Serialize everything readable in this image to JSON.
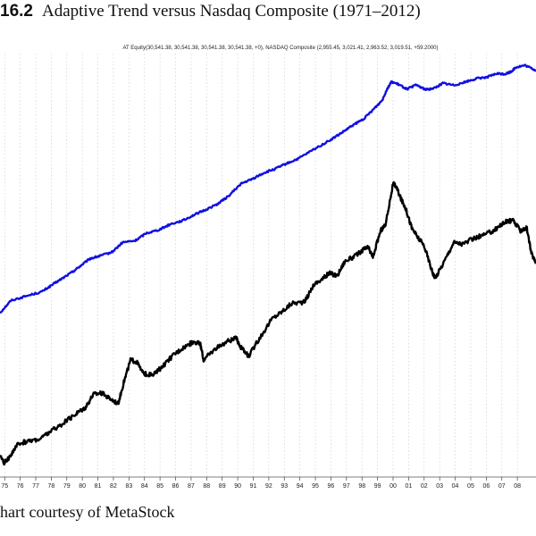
{
  "figure": {
    "number": "16.2",
    "title": "Adaptive Trend versus Nasdaq Composite (1971–2012)"
  },
  "caption": "hart courtesy of MetaStock",
  "chart_data": {
    "type": "line",
    "legend_text": "AT Equity(30,541.38, 30,541.38, 30,541.38, 30,541.38, +0), NASDAQ Composite (2,955.45, 3,021.41, 2,963.52, 3,019.51, +59.2000)",
    "legend_placement": "top-center",
    "grid": "vertical dotted",
    "x_tick_labels": [
      "75",
      "76",
      "77",
      "78",
      "79",
      "80",
      "81",
      "82",
      "83",
      "84",
      "85",
      "86",
      "87",
      "88",
      "89",
      "90",
      "91",
      "92",
      "93",
      "94",
      "95",
      "96",
      "97",
      "98",
      "99",
      "00",
      "01",
      "02",
      "03",
      "04",
      "05",
      "06",
      "07",
      "08"
    ],
    "xlim": [
      1974.8,
      2009.3
    ],
    "y_axis": "log",
    "series": [
      {
        "legend_ref": "AT Equity",
        "color": "#1010e0",
        "x": [
          1974.8,
          1975.5,
          1976.5,
          1977.5,
          1978.2,
          1978.8,
          1979.5,
          1980.0,
          1980.6,
          1981.2,
          1982.0,
          1982.7,
          1983.5,
          1984.2,
          1985.0,
          1985.8,
          1986.6,
          1987.3,
          1988.0,
          1988.8,
          1989.5,
          1990.3,
          1991.0,
          1991.8,
          1992.5,
          1993.2,
          1994.0,
          1995.0,
          1996.0,
          1996.8,
          1997.5,
          1998.2,
          1998.8,
          1999.4,
          1999.7,
          2000.0,
          2000.5,
          2001.0,
          2001.6,
          2002.2,
          2002.8,
          2003.3,
          2004.0,
          2004.8,
          2005.5,
          2006.2,
          2006.8,
          2007.3,
          2007.7,
          2008.0,
          2008.6,
          2009.3
        ],
        "y": [
          680,
          820,
          880,
          940,
          1050,
          1150,
          1280,
          1400,
          1560,
          1620,
          1720,
          2000,
          2050,
          2300,
          2420,
          2650,
          2800,
          3050,
          3280,
          3600,
          4050,
          4900,
          5250,
          5800,
          6150,
          6650,
          7200,
          8300,
          9500,
          10700,
          12000,
          13200,
          15200,
          17600,
          20800,
          23400,
          22300,
          20900,
          22300,
          20700,
          21300,
          22900,
          22200,
          23400,
          24600,
          25200,
          26500,
          26300,
          27300,
          29200,
          30000,
          27800
        ]
      },
      {
        "legend_ref": "NASDAQ Composite",
        "color": "#000000",
        "x": [
          1974.8,
          1975.1,
          1975.6,
          1976.0,
          1976.6,
          1977.4,
          1978.0,
          1978.6,
          1979.3,
          1979.8,
          1980.3,
          1980.8,
          1981.3,
          1981.8,
          1982.4,
          1982.8,
          1983.2,
          1983.6,
          1984.0,
          1984.6,
          1985.3,
          1986.0,
          1986.6,
          1987.3,
          1987.7,
          1987.9,
          1988.5,
          1989.4,
          1990.0,
          1990.3,
          1990.8,
          1991.5,
          1992.3,
          1993.0,
          1993.6,
          1994.4,
          1995.0,
          1995.6,
          1996.0,
          1996.5,
          1997.0,
          1997.6,
          1998.2,
          1998.5,
          1998.8,
          1999.3,
          1999.6,
          2000.1,
          2000.3,
          2000.6,
          2000.9,
          2001.3,
          2001.7,
          2002.1,
          2002.6,
          2002.8,
          2003.4,
          2004.0,
          2004.6,
          2005.2,
          2006.0,
          2006.6,
          2007.0,
          2007.4,
          2007.8,
          2008.3,
          2008.7,
          2009.0,
          2009.3
        ],
        "y": [
          75,
          68,
          80,
          92,
          95,
          99,
          110,
          120,
          135,
          148,
          160,
          195,
          200,
          185,
          170,
          240,
          330,
          320,
          270,
          260,
          300,
          360,
          400,
          440,
          420,
          330,
          380,
          440,
          460,
          400,
          350,
          460,
          620,
          700,
          790,
          800,
          1050,
          1150,
          1250,
          1200,
          1500,
          1600,
          1800,
          1850,
          1600,
          2400,
          2600,
          4900,
          4700,
          3900,
          3400,
          2500,
          2150,
          1900,
          1300,
          1150,
          1500,
          2000,
          1950,
          2100,
          2250,
          2400,
          2600,
          2750,
          2800,
          2400,
          2500,
          1700,
          1450
        ]
      }
    ]
  }
}
